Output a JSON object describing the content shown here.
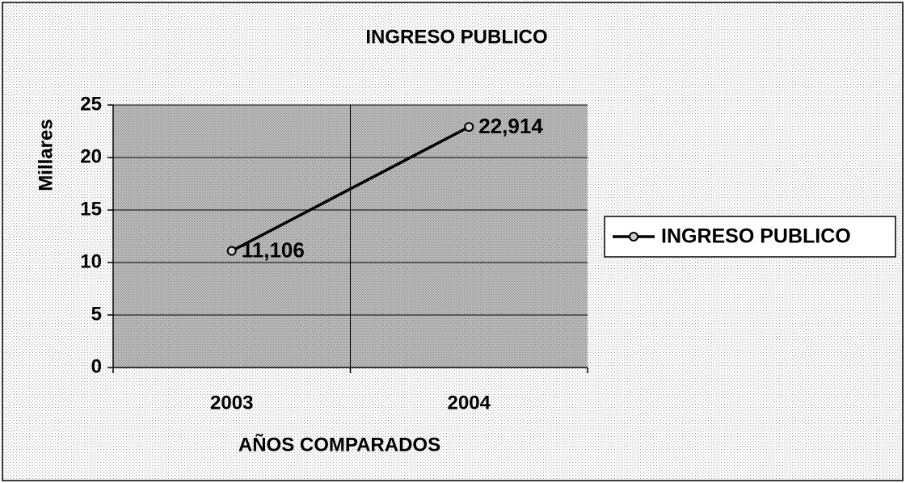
{
  "chart_data": {
    "type": "line",
    "title": "INGRESO PUBLICO",
    "x_label": "AÑOS COMPARADOS",
    "y_label": "Millares",
    "categories": [
      "2003",
      "2004"
    ],
    "series": [
      {
        "name": "INGRESO PUBLICO",
        "color": "#000000",
        "values": [
          11.106,
          22.914
        ],
        "value_labels": [
          "11,106",
          "22,914"
        ]
      }
    ],
    "ylim": [
      0,
      25
    ],
    "yticks": [
      0,
      5,
      10,
      15,
      20,
      25
    ],
    "grid": true,
    "legend": "right"
  }
}
